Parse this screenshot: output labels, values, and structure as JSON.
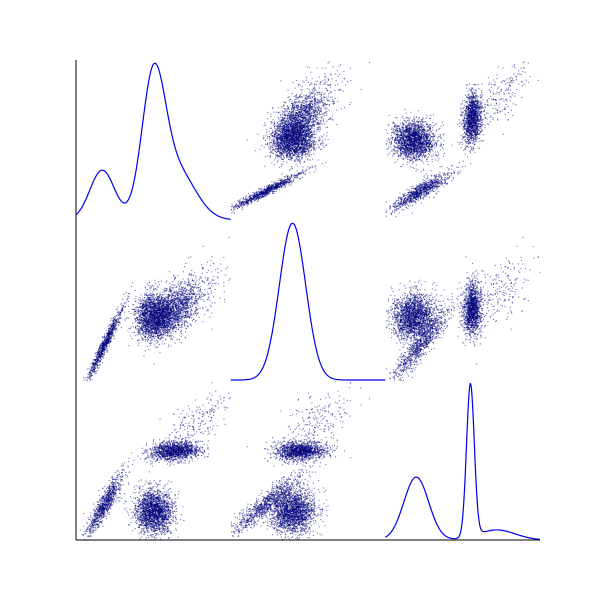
{
  "colors": {
    "point": "#00007a",
    "density_line": "#0000ee",
    "axis": "#000000",
    "background": "#ffffff"
  },
  "chart_data": {
    "type": "scatter",
    "subtype": "scatter-matrix",
    "title": "",
    "variables": [
      "",
      "",
      ""
    ],
    "grid": false,
    "legend": "none",
    "tick_labels": "none",
    "diagonal": "kernel-density",
    "off_diagonal": "scatter",
    "axes": {
      "x_range": [
        0,
        1
      ],
      "y_range": [
        0,
        1
      ]
    },
    "variable_distributions": [
      {
        "components": [
          {
            "weight": 0.2,
            "mean": 0.17,
            "sd": 0.08
          },
          {
            "weight": 0.5,
            "mean": 0.5,
            "sd": 0.075
          },
          {
            "weight": 0.3,
            "mean": 0.65,
            "sd": 0.12
          }
        ]
      },
      {
        "components": [
          {
            "weight": 1.0,
            "mean": 0.4,
            "sd": 0.085
          }
        ]
      },
      {
        "components": [
          {
            "weight": 0.5,
            "mean": 0.2,
            "sd": 0.08
          },
          {
            "weight": 0.38,
            "mean": 0.55,
            "sd": 0.025
          },
          {
            "weight": 0.12,
            "mean": 0.72,
            "sd": 0.12
          }
        ]
      }
    ],
    "clusters": [
      {
        "weight": 0.2,
        "mean": [
          0.18,
          0.22,
          0.22
        ],
        "sd": [
          0.06,
          0.12,
          0.1
        ],
        "corr": [
          [
            1,
            0.97,
            0.9
          ],
          [
            0.97,
            1,
            0.92
          ],
          [
            0.9,
            0.92,
            1
          ]
        ]
      },
      {
        "weight": 0.45,
        "mean": [
          0.5,
          0.4,
          0.18
        ],
        "sd": [
          0.06,
          0.07,
          0.07
        ],
        "corr": [
          [
            1,
            0.1,
            -0.05
          ],
          [
            0.1,
            1,
            0.05
          ],
          [
            -0.05,
            0.05,
            1
          ]
        ]
      },
      {
        "weight": 0.3,
        "mean": [
          0.64,
          0.45,
          0.56
        ],
        "sd": [
          0.08,
          0.08,
          0.03
        ],
        "corr": [
          [
            1,
            0.45,
            0.15
          ],
          [
            0.45,
            1,
            0.1
          ],
          [
            0.15,
            0.1,
            1
          ]
        ]
      },
      {
        "weight": 0.05,
        "mean": [
          0.78,
          0.55,
          0.75
        ],
        "sd": [
          0.12,
          0.12,
          0.1
        ],
        "corr": [
          [
            1,
            0.6,
            0.7
          ],
          [
            0.6,
            1,
            0.6
          ],
          [
            0.7,
            0.6,
            1
          ]
        ]
      }
    ],
    "n_points": 4500
  }
}
